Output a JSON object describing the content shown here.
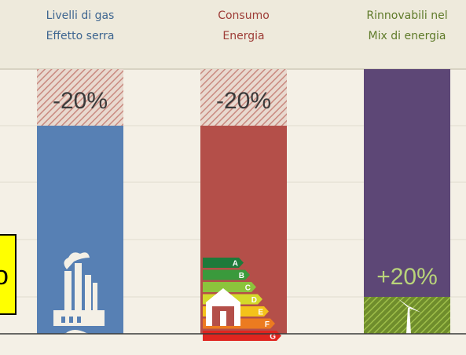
{
  "columns": [
    {
      "title": [
        "Livelli di gas",
        "Effetto serra"
      ],
      "target": "-20%"
    },
    {
      "title": [
        "Consumo",
        "Energia"
      ],
      "target": "-20%"
    },
    {
      "title": [
        "Rinnovabili nel",
        "Mix di energia"
      ],
      "target": "+20%"
    }
  ],
  "energy_classes": [
    "A",
    "B",
    "C",
    "D",
    "E",
    "F",
    "G"
  ],
  "overlay_text": "o"
}
